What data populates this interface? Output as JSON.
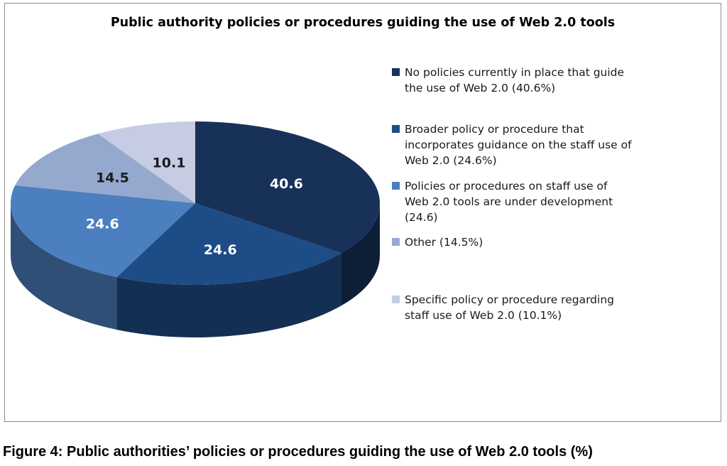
{
  "chart_data": {
    "type": "pie",
    "title": "Public authority policies or procedures guiding the use of Web 2.0 tools",
    "slices": [
      {
        "label": "No policies currently in place that guide the use of Web 2.0 (40.6%)",
        "value": 40.6,
        "color": "#173159"
      },
      {
        "label": "Broader policy or procedure that incorporates guidance on the staff use of Web 2.0 (24.6%)",
        "value": 24.6,
        "color": "#1e4c86"
      },
      {
        "label": "Policies or procedures on staff use of Web 2.0 tools are under development (24.6)",
        "value": 24.6,
        "color": "#4b7fc0"
      },
      {
        "label": "Other (14.5%)",
        "value": 14.5,
        "color": "#95a9cf"
      },
      {
        "label": "Specific policy or procedure regarding staff use of Web 2.0 (10.1%)",
        "value": 10.1,
        "color": "#c6cce3"
      }
    ],
    "data_labels": [
      "40.6",
      "24.6",
      "24.6",
      "14.5",
      "10.1"
    ],
    "legend_position": "right",
    "style": "3d"
  },
  "caption": "Figure 4: Public authorities’ policies or procedures guiding the use of Web 2.0 tools (%)"
}
